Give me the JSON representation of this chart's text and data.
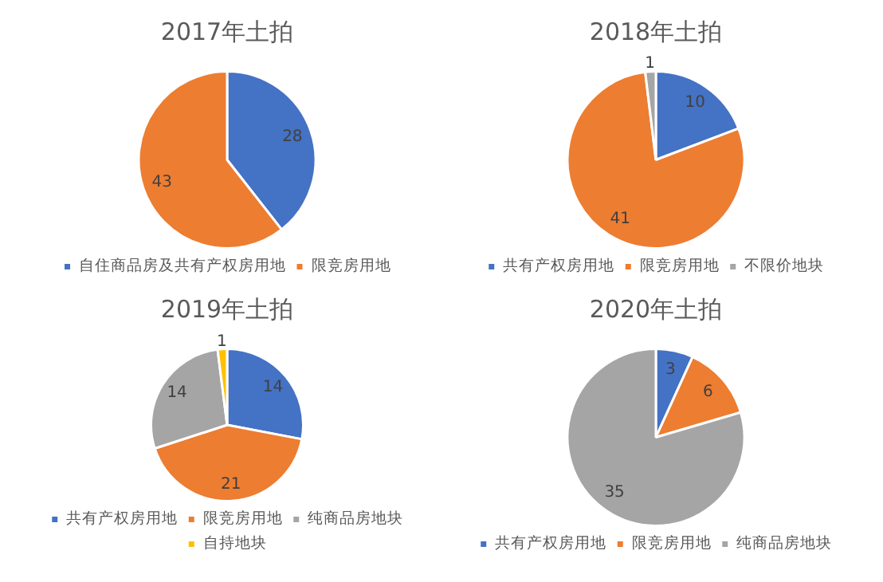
{
  "chart_data": [
    {
      "type": "pie",
      "title": "2017年土拍",
      "categories": [
        "自住商品房及共有产权房用地",
        "限竞房用地"
      ],
      "values": [
        28,
        43
      ],
      "colors": [
        "#4472c4",
        "#ed7d31"
      ],
      "data_labels": true,
      "legend": "bottom"
    },
    {
      "type": "pie",
      "title": "2018年土拍",
      "categories": [
        "共有产权房用地",
        "限竞房用地",
        "不限价地块"
      ],
      "values": [
        10,
        41,
        1
      ],
      "colors": [
        "#4472c4",
        "#ed7d31",
        "#a5a5a5"
      ],
      "data_labels": true,
      "legend": "bottom"
    },
    {
      "type": "pie",
      "title": "2019年土拍",
      "categories": [
        "共有产权房用地",
        "限竞房用地",
        "纯商品房地块",
        "自持地块"
      ],
      "values": [
        14,
        21,
        14,
        1
      ],
      "colors": [
        "#4472c4",
        "#ed7d31",
        "#a5a5a5",
        "#ffc000"
      ],
      "data_labels": true,
      "legend": "bottom"
    },
    {
      "type": "pie",
      "title": "2020年土拍",
      "categories": [
        "共有产权房用地",
        "限竞房用地",
        "纯商品房地块"
      ],
      "values": [
        3,
        6,
        35
      ],
      "colors": [
        "#4472c4",
        "#ed7d31",
        "#a5a5a5"
      ],
      "data_labels": true,
      "legend": "bottom"
    }
  ]
}
